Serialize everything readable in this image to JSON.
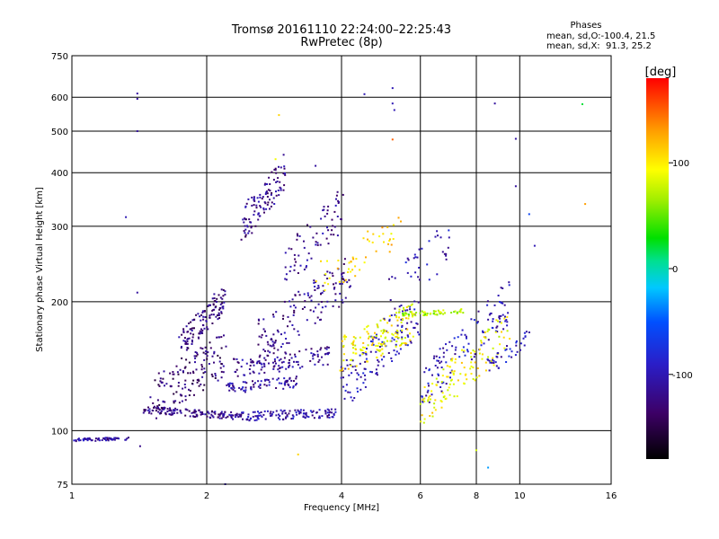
{
  "chart_data": {
    "type": "scatter",
    "title": "Tromsø 20161110 22:24:00–22:25:43",
    "subtitle": "RwPretec (8p)",
    "xlabel": "Frequency [MHz]",
    "ylabel": "Stationary phase Virtual Height [km]",
    "x_scale": "log",
    "y_scale": "log",
    "xlim": [
      1,
      16
    ],
    "ylim": [
      75,
      750
    ],
    "x_ticks": [
      "1",
      "2",
      "4",
      "6",
      "8",
      "10",
      "16"
    ],
    "x_tick_values": [
      1,
      2,
      4,
      6,
      8,
      10,
      16
    ],
    "y_ticks": [
      "75",
      "100",
      "200",
      "300",
      "400",
      "500",
      "600",
      "750"
    ],
    "y_tick_values": [
      75,
      100,
      200,
      300,
      400,
      500,
      600,
      750
    ],
    "grid": true,
    "colorbar": {
      "label": "[deg]",
      "range": [
        -180,
        180
      ],
      "ticks": [
        "100",
        "0",
        "-100"
      ],
      "tick_values": [
        100,
        0,
        -100
      ]
    },
    "stats_title": "Phases",
    "stats_lines": [
      "mean, sd,O:-100.4, 21.5",
      "mean, sd,X:  91.3, 25.2"
    ],
    "trace_notes": "approximate point clouds read from the ionogram",
    "traces": [
      {
        "x": [
          1.0,
          1.35
        ],
        "y": [
          95,
          96
        ],
        "phase": -110,
        "n": 60,
        "jitter": 0.008
      },
      {
        "x": [
          1.45,
          2.4
        ],
        "y": [
          112,
          108
        ],
        "phase": -120,
        "n": 140,
        "jitter": 0.02
      },
      {
        "x": [
          2.4,
          3.9
        ],
        "y": [
          108,
          110
        ],
        "phase": -105,
        "n": 120,
        "jitter": 0.025
      },
      {
        "x": [
          1.5,
          2.2
        ],
        "y": [
          118,
          150
        ],
        "phase": -130,
        "n": 140,
        "jitter": 0.12
      },
      {
        "x": [
          1.75,
          2.2
        ],
        "y": [
          160,
          205
        ],
        "phase": -125,
        "n": 120,
        "jitter": 0.07
      },
      {
        "x": [
          2.2,
          3.2
        ],
        "y": [
          125,
          130
        ],
        "phase": -110,
        "n": 80,
        "jitter": 0.03
      },
      {
        "x": [
          2.3,
          3.8
        ],
        "y": [
          140,
          150
        ],
        "phase": -115,
        "n": 110,
        "jitter": 0.05
      },
      {
        "x": [
          2.4,
          3.0
        ],
        "y": [
          300,
          400
        ],
        "phase": -120,
        "n": 110,
        "jitter": 0.1
      },
      {
        "x": [
          2.6,
          4.2
        ],
        "y": [
          160,
          230
        ],
        "phase": -120,
        "n": 140,
        "jitter": 0.12
      },
      {
        "x": [
          3.0,
          4.0
        ],
        "y": [
          240,
          330
        ],
        "phase": -115,
        "n": 70,
        "jitter": 0.12
      },
      {
        "x": [
          4.0,
          6.0
        ],
        "y": [
          125,
          190
        ],
        "phase": -100,
        "n": 130,
        "jitter": 0.12
      },
      {
        "x": [
          4.0,
          5.8
        ],
        "y": [
          150,
          180
        ],
        "phase": 95,
        "n": 140,
        "jitter": 0.1
      },
      {
        "x": [
          5.5,
          7.5
        ],
        "y": [
          187,
          190
        ],
        "phase": 70,
        "n": 60,
        "jitter": 0.012
      },
      {
        "x": [
          6.0,
          9.5
        ],
        "y": [
          125,
          200
        ],
        "phase": -100,
        "n": 120,
        "jitter": 0.12
      },
      {
        "x": [
          6.0,
          9.5
        ],
        "y": [
          115,
          170
        ],
        "phase": 95,
        "n": 120,
        "jitter": 0.12
      },
      {
        "x": [
          8.5,
          10.5
        ],
        "y": [
          140,
          165
        ],
        "phase": -95,
        "n": 40,
        "jitter": 0.05
      },
      {
        "x": [
          3.5,
          5.5
        ],
        "y": [
          220,
          300
        ],
        "phase": 110,
        "n": 50,
        "jitter": 0.1
      },
      {
        "x": [
          5.0,
          7.0
        ],
        "y": [
          200,
          280
        ],
        "phase": -100,
        "n": 40,
        "jitter": 0.12
      }
    ],
    "outliers": [
      {
        "x": 1.4,
        "y": 612,
        "phase": -110
      },
      {
        "x": 1.4,
        "y": 595,
        "phase": -110
      },
      {
        "x": 1.4,
        "y": 500,
        "phase": -110
      },
      {
        "x": 1.32,
        "y": 315,
        "phase": -100
      },
      {
        "x": 1.4,
        "y": 210,
        "phase": -110
      },
      {
        "x": 1.42,
        "y": 92,
        "phase": -120
      },
      {
        "x": 5.2,
        "y": 630,
        "phase": -100
      },
      {
        "x": 5.2,
        "y": 580,
        "phase": -100
      },
      {
        "x": 5.25,
        "y": 560,
        "phase": -100
      },
      {
        "x": 5.2,
        "y": 478,
        "phase": 150
      },
      {
        "x": 4.5,
        "y": 610,
        "phase": -100
      },
      {
        "x": 8.8,
        "y": 580,
        "phase": -110
      },
      {
        "x": 9.8,
        "y": 480,
        "phase": -110
      },
      {
        "x": 9.8,
        "y": 372,
        "phase": -110
      },
      {
        "x": 13.8,
        "y": 578,
        "phase": 20
      },
      {
        "x": 14.0,
        "y": 338,
        "phase": 130
      },
      {
        "x": 10.5,
        "y": 320,
        "phase": -60
      },
      {
        "x": 10.8,
        "y": 270,
        "phase": -100
      },
      {
        "x": 2.9,
        "y": 545,
        "phase": 110
      },
      {
        "x": 2.85,
        "y": 430,
        "phase": 90
      },
      {
        "x": 3.5,
        "y": 415,
        "phase": -110
      },
      {
        "x": 8.0,
        "y": 90,
        "phase": 80
      },
      {
        "x": 8.5,
        "y": 82,
        "phase": -30
      },
      {
        "x": 2.2,
        "y": 75,
        "phase": -100
      },
      {
        "x": 3.2,
        "y": 88,
        "phase": 110
      }
    ]
  }
}
